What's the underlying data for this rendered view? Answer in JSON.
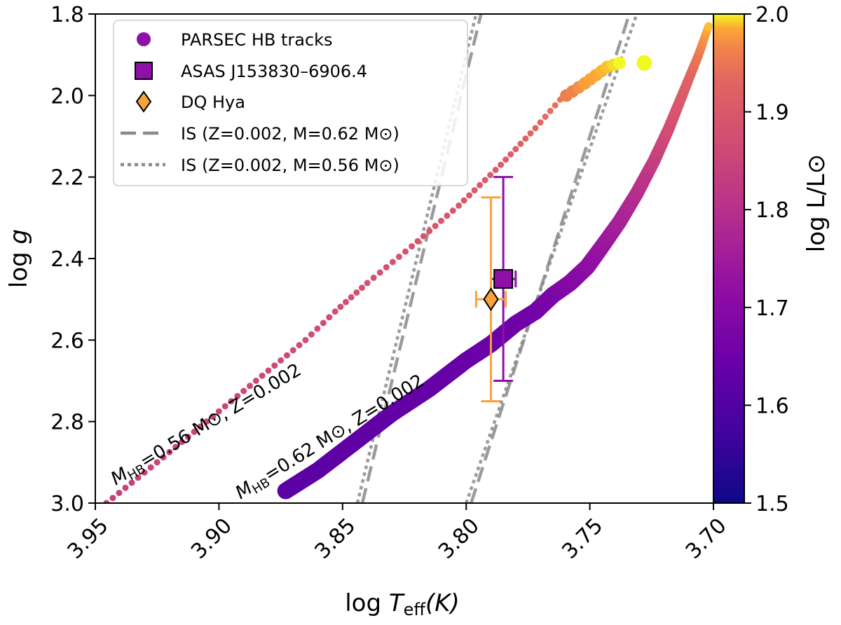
{
  "chart_data": {
    "type": "scatter",
    "xlabel_prefix": "log ",
    "xlabel_var": "T",
    "xlabel_sub": "eff",
    "xlabel_suffix": "(K)",
    "ylabel_prefix": "log ",
    "ylabel_var": "g",
    "cbar_label": "log  L/L⊙",
    "xlim": [
      3.95,
      3.7
    ],
    "ylim": [
      3.0,
      1.8
    ],
    "clim": [
      1.5,
      2.0
    ],
    "xticks": [
      3.95,
      3.9,
      3.85,
      3.8,
      3.75,
      3.7
    ],
    "xtick_labels": [
      "3.95",
      "3.90",
      "3.85",
      "3.80",
      "3.75",
      "3.70"
    ],
    "yticks": [
      1.8,
      2.0,
      2.2,
      2.4,
      2.6,
      2.8,
      3.0
    ],
    "ytick_labels": [
      "1.8",
      "2.0",
      "2.2",
      "2.4",
      "2.6",
      "2.8",
      "3.0"
    ],
    "cticks": [
      1.5,
      1.6,
      1.7,
      1.8,
      1.9,
      2.0
    ],
    "ctick_labels": [
      "1.5",
      "1.6",
      "1.7",
      "1.8",
      "1.9",
      "2.0"
    ],
    "tracks": [
      {
        "name": "PARSEC HB track M=0.56",
        "label_main": "M",
        "label_sub": "HB",
        "label_rest": "=0.56 M⊙, Z=0.002",
        "points": [
          [
            3.9455,
            3.0,
            1.84
          ],
          [
            3.925,
            2.9,
            1.845
          ],
          [
            3.905,
            2.8,
            1.85
          ],
          [
            3.885,
            2.7,
            1.86
          ],
          [
            3.865,
            2.6,
            1.87
          ],
          [
            3.853,
            2.53,
            1.875
          ],
          [
            3.84,
            2.46,
            1.88
          ],
          [
            3.822,
            2.37,
            1.89
          ],
          [
            3.803,
            2.27,
            1.9
          ],
          [
            3.786,
            2.17,
            1.91
          ],
          [
            3.772,
            2.08,
            1.93
          ],
          [
            3.762,
            2.01,
            1.95
          ],
          [
            3.752,
            1.97,
            1.98
          ],
          [
            3.743,
            1.93,
            1.99
          ],
          [
            3.738,
            1.92,
            2.0
          ]
        ]
      },
      {
        "name": "PARSEC HB track M=0.62",
        "label_main": "M",
        "label_sub": "HB",
        "label_rest": "=0.62 M⊙, Z=0.002",
        "points": [
          [
            3.873,
            2.97,
            1.62
          ],
          [
            3.86,
            2.92,
            1.62
          ],
          [
            3.845,
            2.85,
            1.625
          ],
          [
            3.83,
            2.78,
            1.63
          ],
          [
            3.815,
            2.72,
            1.635
          ],
          [
            3.8,
            2.65,
            1.64
          ],
          [
            3.79,
            2.61,
            1.645
          ],
          [
            3.78,
            2.56,
            1.655
          ],
          [
            3.772,
            2.53,
            1.66
          ],
          [
            3.765,
            2.49,
            1.675
          ],
          [
            3.758,
            2.46,
            1.69
          ],
          [
            3.751,
            2.42,
            1.71
          ],
          [
            3.745,
            2.37,
            1.73
          ],
          [
            3.738,
            2.31,
            1.76
          ],
          [
            3.731,
            2.24,
            1.79
          ],
          [
            3.724,
            2.16,
            1.83
          ],
          [
            3.718,
            2.08,
            1.87
          ],
          [
            3.712,
            1.99,
            1.91
          ],
          [
            3.706,
            1.9,
            1.95
          ],
          [
            3.702,
            1.83,
            1.99
          ]
        ]
      }
    ],
    "stars": [
      {
        "name": "ASAS J153830–6906.4",
        "marker": "square",
        "x": 3.785,
        "y": 2.45,
        "xerr": 0.005,
        "yerr": 0.25,
        "color": "#8e10a8"
      },
      {
        "name": "DQ Hya",
        "marker": "diamond",
        "x": 3.79,
        "y": 2.5,
        "xerr": 0.006,
        "yerr": 0.25,
        "color": "#f8a33a"
      }
    ],
    "instability_strip": [
      {
        "name": "IS (Z=0.002, M=0.62 M⊙)",
        "style": "dashed",
        "blue_edge": [
          [
            3.842,
            3.0
          ],
          [
            3.794,
            1.8
          ]
        ],
        "red_edge": [
          [
            3.798,
            3.0
          ],
          [
            3.734,
            1.8
          ]
        ]
      },
      {
        "name": "IS (Z=0.002, M=0.56 M⊙)",
        "style": "dotted",
        "blue_edge": [
          [
            3.844,
            3.0
          ],
          [
            3.796,
            1.8
          ]
        ],
        "red_edge": [
          [
            3.8,
            3.0
          ],
          [
            3.731,
            1.8
          ]
        ]
      }
    ],
    "legend": [
      {
        "marker": "circle",
        "label": "PARSEC HB tracks"
      },
      {
        "marker": "square",
        "label": "ASAS J153830–6906.4"
      },
      {
        "marker": "diamond",
        "label": "DQ Hya"
      },
      {
        "marker": "dashed",
        "label": "IS (Z=0.002, M=0.62 M⊙)"
      },
      {
        "marker": "dotted",
        "label": "IS (Z=0.002, M=0.56 M⊙)"
      }
    ],
    "legend_position": "top-left",
    "colors": {
      "legend_circle": "#8e10a8",
      "square": "#8e10a8",
      "diamond": "#f8a33a",
      "strip": "#8a8a8a"
    }
  }
}
